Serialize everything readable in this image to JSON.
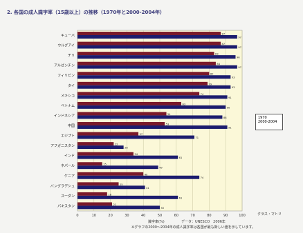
{
  "page": {
    "title": "2. 各国の成人識字率（15歳以上）の推移（1970年と2000-2004年）"
  },
  "legend": {
    "items": [
      "1970",
      "2000-2004"
    ]
  },
  "captions": {
    "axis_unit": "識字率(%)",
    "source_short": "クラス・マトリ",
    "source_line1": "データ：UNESCO　2006年",
    "source_line2": "※グラフの2000〜2004年の成人識字率は各国が最も新しい値を示しています。"
  },
  "colors": {
    "series_1970": "#7a1a2a",
    "series_recent": "#1c1c6e",
    "plot_bg": "#fbf8d8",
    "grid": "#c9c6a0"
  },
  "chart_data": {
    "type": "bar",
    "orientation": "horizontal",
    "title": "2. 各国の成人識字率（15歳以上）の推移（1970年と2000-2004年）",
    "categories": [
      "キューバ",
      "ウルグアイ",
      "チリ",
      "アルゼンチン",
      "フィリピン",
      "タイ",
      "メキシコ",
      "ベトナム",
      "インドネシア",
      "中国",
      "エジプト",
      "アフガニスタン",
      "インド",
      "ネパール",
      "ケニア",
      "バングラデシュ",
      "スーダン",
      "パキスタン"
    ],
    "series": [
      {
        "name": "1970",
        "values": [
          87,
          87,
          83,
          84,
          80,
          79,
          74,
          63,
          54,
          53,
          37,
          22,
          34,
          15,
          40,
          25,
          18,
          21
        ]
      },
      {
        "name": "2000-2004",
        "values": [
          97,
          97,
          96,
          97,
          93,
          93,
          91,
          90,
          88,
          91,
          71,
          28,
          61,
          49,
          74,
          41,
          61,
          50
        ]
      }
    ],
    "xlabel": "識字率(%)",
    "ylabel": "",
    "xlim": [
      0,
      100
    ],
    "xticks": [
      0,
      10,
      20,
      30,
      40,
      50,
      60,
      70,
      80,
      90,
      100
    ],
    "grid": true,
    "legend_position": "right"
  }
}
